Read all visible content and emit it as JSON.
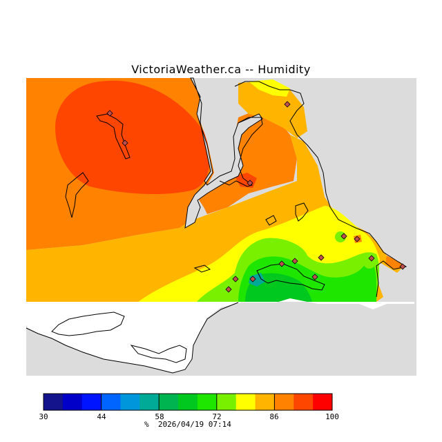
{
  "header": {
    "title": "VictoriaWeather.ca -- Humidity"
  },
  "map": {
    "variable": "Relative humidity",
    "unit": "%",
    "land_color": "#dcdcdc",
    "water_mask_color": "#ffffff",
    "coastline_color": "#000000",
    "station_marker": "diamond",
    "station_marker_color": "#c0504d"
  },
  "colorbar": {
    "min": 30,
    "max": 100,
    "step": 4.667,
    "tick_labels": [
      "30",
      "44",
      "58",
      "72",
      "86",
      "100"
    ],
    "colors": [
      "#14148c",
      "#0000c8",
      "#0014ff",
      "#0064ff",
      "#0096dc",
      "#00aa96",
      "#00b450",
      "#00c81e",
      "#1ee600",
      "#78f000",
      "#ffff00",
      "#ffb400",
      "#ff8200",
      "#ff4600",
      "#ff0000"
    ]
  },
  "footer": {
    "unit_label": "%",
    "timestamp": "2026/04/19 07:14"
  }
}
